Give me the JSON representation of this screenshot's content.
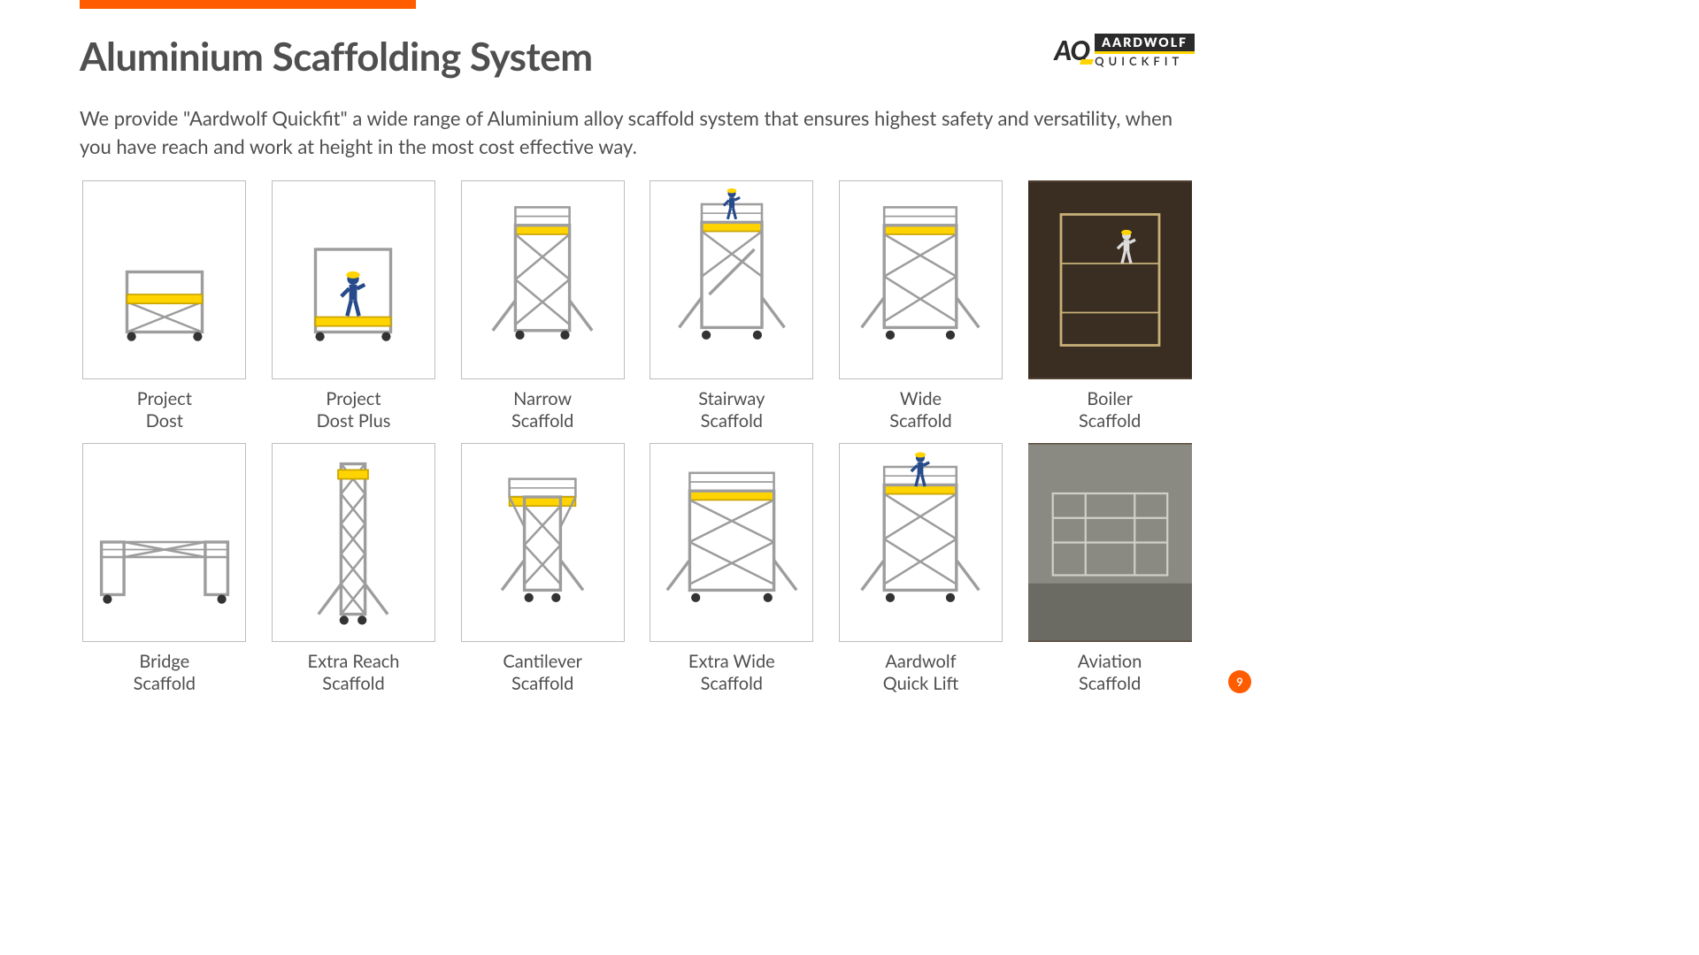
{
  "accent_color": "#ff5c00",
  "brand_yellow": "#ffd400",
  "title": "Aluminium Scaffolding System",
  "logo": {
    "mark": "AQ",
    "line1": "AARDWOLF",
    "line2": "QUICKFIT"
  },
  "intro": "We provide \"Aardwolf Quickfit\" a wide range of Aluminium alloy scaffold system that ensures highest safety and versatility, when you have reach and work at height in the most cost effective way.",
  "products": [
    {
      "label": "Project\nDost",
      "kind": "low-frame",
      "photo": false
    },
    {
      "label": "Project\nDost Plus",
      "kind": "low-frame-worker",
      "photo": false
    },
    {
      "label": "Narrow\nScaffold",
      "kind": "tower",
      "photo": false
    },
    {
      "label": "Stairway\nScaffold",
      "kind": "tower-stair",
      "photo": false
    },
    {
      "label": "Wide\nScaffold",
      "kind": "tower-wide",
      "photo": false
    },
    {
      "label": "Boiler\nScaffold",
      "kind": "boiler",
      "photo": true
    },
    {
      "label": "Bridge\nScaffold",
      "kind": "bridge",
      "photo": false
    },
    {
      "label": "Extra Reach\nScaffold",
      "kind": "tall-tower",
      "photo": false
    },
    {
      "label": "Cantilever\nScaffold",
      "kind": "cantilever",
      "photo": false
    },
    {
      "label": "Extra Wide\nScaffold",
      "kind": "tower-xwide",
      "photo": false
    },
    {
      "label": "Aardwolf\nQuick Lift",
      "kind": "quick-lift",
      "photo": false
    },
    {
      "label": "Aviation\nScaffold",
      "kind": "aviation",
      "photo": true
    }
  ],
  "page_number": "9",
  "style": {
    "title_fontsize": 44,
    "intro_fontsize": 22,
    "caption_fontsize": 20,
    "thumb_border": "#bdbdbd",
    "text_color": "#4f4f4f",
    "scaffold_stroke": "#9d9d9d",
    "scaffold_platform": "#ffd400",
    "worker_color": "#264a8a"
  }
}
